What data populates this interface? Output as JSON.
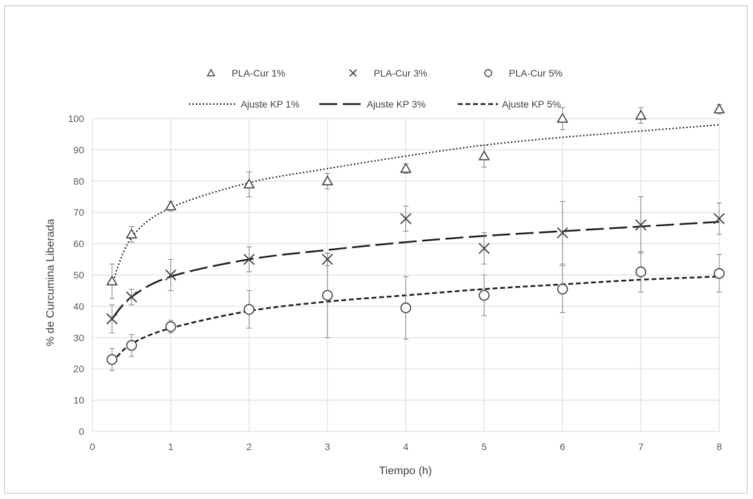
{
  "chart_data": {
    "type": "scatter",
    "title": "",
    "xlabel": "Tiempo (h)",
    "ylabel": "% de Curcumina Liberada",
    "xlim": [
      0,
      8
    ],
    "ylim": [
      0,
      100
    ],
    "xticks": [
      0,
      1,
      2,
      3,
      4,
      5,
      6,
      7,
      8
    ],
    "yticks": [
      0,
      10,
      20,
      30,
      40,
      50,
      60,
      70,
      80,
      90,
      100
    ],
    "grid": true,
    "legend_position": "top",
    "series": [
      {
        "name": "PLA-Cur 1%",
        "marker": "triangle",
        "x": [
          0.25,
          0.5,
          1,
          2,
          3,
          4,
          5,
          6,
          7,
          8
        ],
        "y": [
          48,
          63,
          72,
          79,
          80,
          84,
          88,
          100,
          101,
          103
        ],
        "err": [
          5.5,
          2.5,
          1.5,
          4,
          2.5,
          1.5,
          3.5,
          3.5,
          2.5,
          1.5
        ]
      },
      {
        "name": "PLA-Cur 3%",
        "marker": "x",
        "x": [
          0.25,
          0.5,
          1,
          2,
          3,
          4,
          5,
          6,
          7,
          8
        ],
        "y": [
          36,
          43,
          50,
          55,
          55,
          68,
          58.5,
          63.5,
          66,
          68
        ],
        "err": [
          4.5,
          2.5,
          5,
          4,
          2,
          4,
          5,
          10,
          9,
          5
        ]
      },
      {
        "name": "PLA-Cur 5%",
        "marker": "circle",
        "x": [
          0.25,
          0.5,
          1,
          2,
          3,
          4,
          5,
          6,
          7,
          8
        ],
        "y": [
          23,
          27.5,
          33.5,
          39,
          43.5,
          39.5,
          43.5,
          45.5,
          51,
          50.5
        ],
        "err": [
          3.5,
          3.5,
          2,
          6,
          13.5,
          10,
          6.5,
          7.5,
          6.5,
          6
        ]
      }
    ],
    "fits": [
      {
        "name": "Ajuste KP 1%",
        "style": "dotted",
        "x": [
          0.25,
          0.5,
          1,
          2,
          3,
          4,
          5,
          6,
          7,
          8
        ],
        "y": [
          47,
          62,
          71.5,
          79.5,
          84,
          88,
          91.5,
          94,
          96,
          98
        ]
      },
      {
        "name": "Ajuste KP 3%",
        "style": "long-dash",
        "x": [
          0.25,
          0.5,
          1,
          2,
          3,
          4,
          5,
          6,
          7,
          8
        ],
        "y": [
          36,
          43,
          49.5,
          55,
          58,
          60.5,
          62.5,
          64,
          65.5,
          67
        ]
      },
      {
        "name": "Ajuste KP 5%",
        "style": "short-dash",
        "x": [
          0.25,
          0.5,
          1,
          2,
          3,
          4,
          5,
          6,
          7,
          8
        ],
        "y": [
          22,
          28,
          33,
          38.5,
          41.5,
          43.5,
          45.5,
          47,
          48.5,
          49.5
        ]
      }
    ]
  }
}
